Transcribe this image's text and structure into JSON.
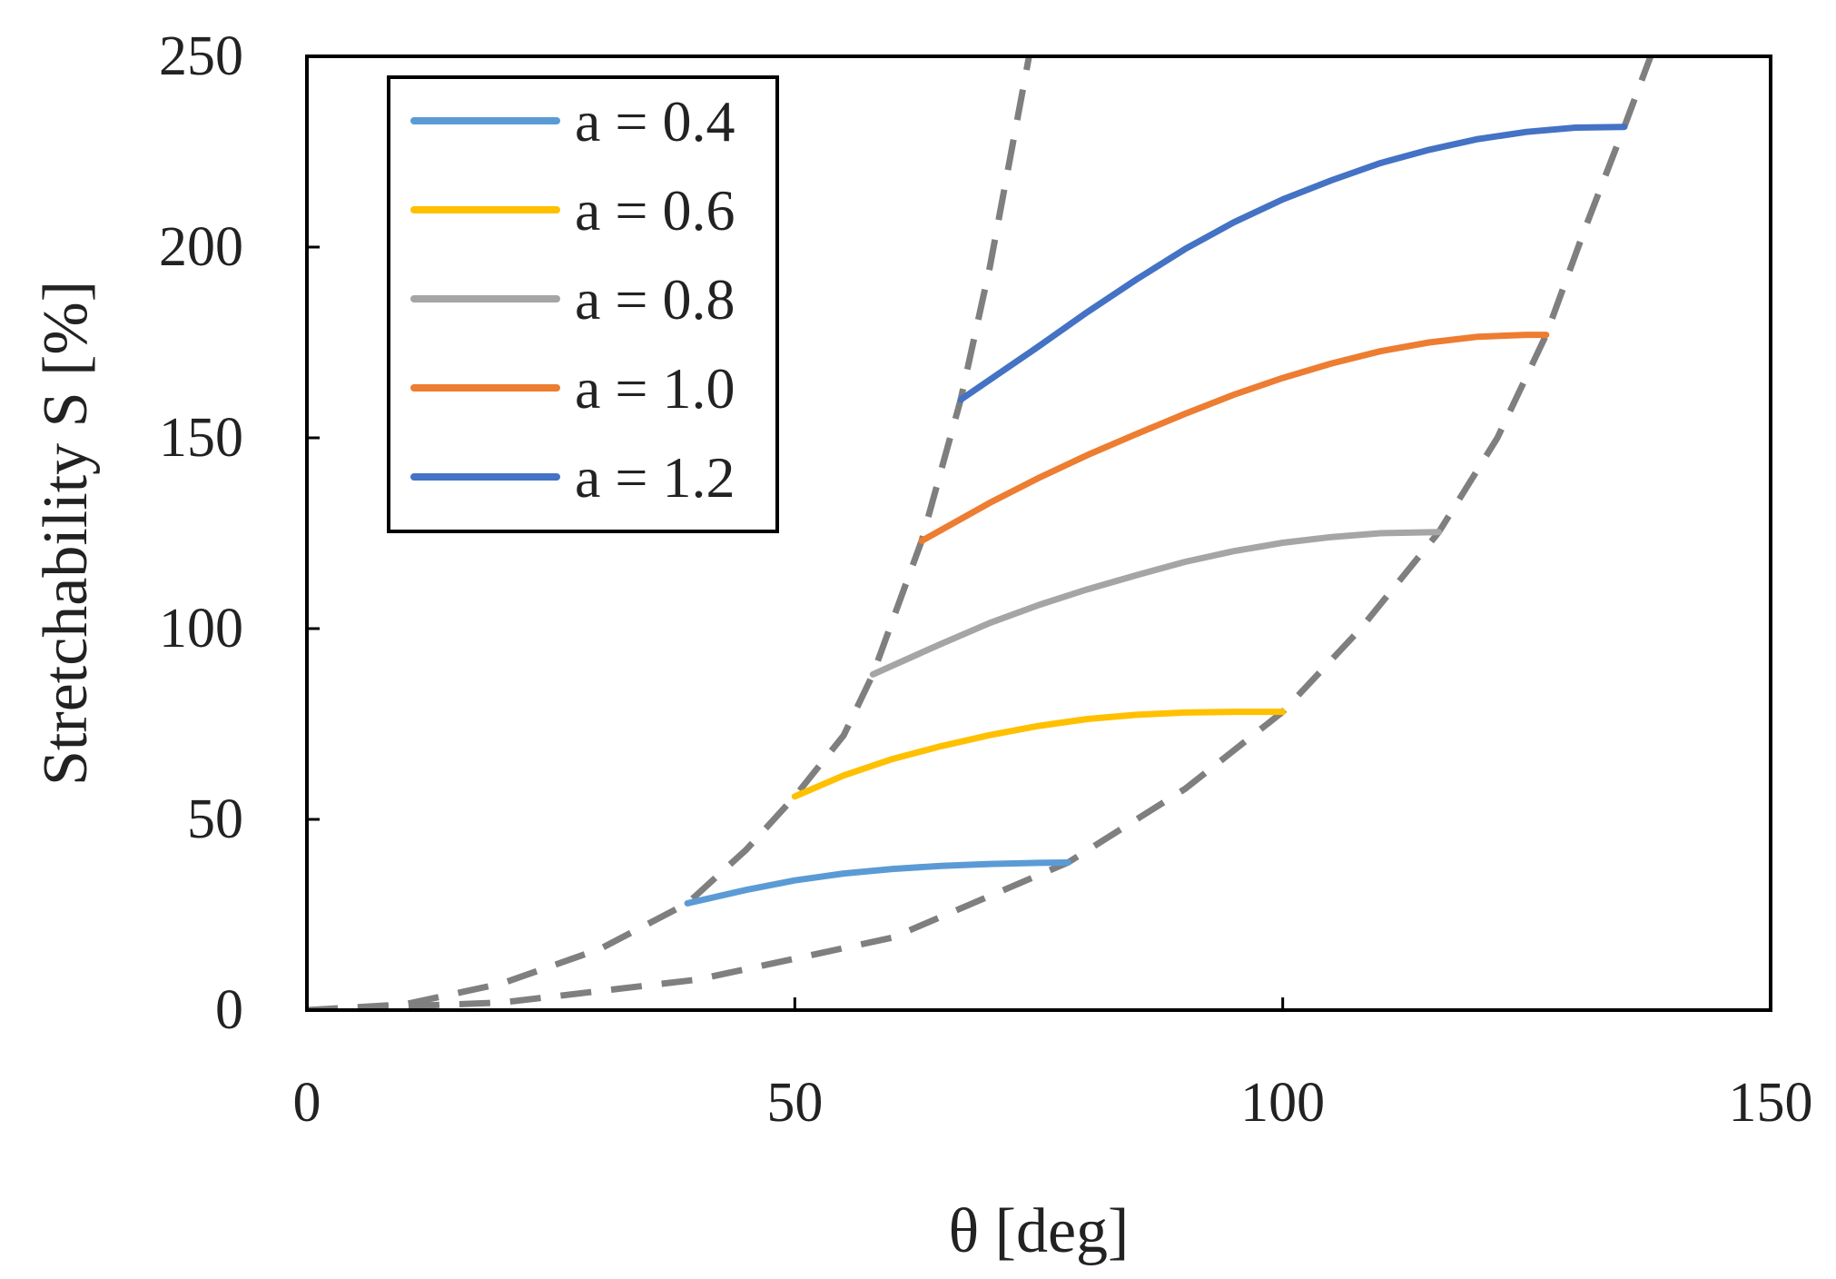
{
  "chart_data": {
    "type": "line",
    "title": "",
    "xlabel": "θ [deg]",
    "ylabel": "Stretchability S [%]",
    "xlim": [
      0,
      150
    ],
    "ylim": [
      0,
      250
    ],
    "xticks": [
      0,
      50,
      100,
      150
    ],
    "yticks": [
      0,
      50,
      100,
      150,
      200,
      250
    ],
    "grid": false,
    "legend_position": "top-left",
    "series": [
      {
        "name": "a = 0.4",
        "color": "#5B9BD5",
        "style": "solid",
        "x": [
          39,
          45,
          50,
          55,
          60,
          65,
          70,
          75,
          78
        ],
        "y": [
          28,
          31.5,
          34,
          35.8,
          37,
          37.8,
          38.3,
          38.6,
          38.7
        ]
      },
      {
        "name": "a = 0.6",
        "color": "#FFC000",
        "style": "solid",
        "x": [
          50,
          55,
          60,
          65,
          70,
          75,
          80,
          85,
          90,
          95,
          100
        ],
        "y": [
          56,
          61.5,
          65.8,
          69.2,
          72.1,
          74.5,
          76.3,
          77.4,
          78,
          78.2,
          78.2
        ]
      },
      {
        "name": "a = 0.8",
        "color": "#A5A5A5",
        "style": "solid",
        "x": [
          58,
          65,
          70,
          75,
          80,
          85,
          90,
          95,
          100,
          105,
          110,
          116
        ],
        "y": [
          88,
          96,
          101.5,
          106.2,
          110.3,
          114,
          117.5,
          120.3,
          122.5,
          124,
          125,
          125.3
        ]
      },
      {
        "name": "a = 1.0",
        "color": "#ED7D31",
        "style": "solid",
        "x": [
          63,
          70,
          75,
          80,
          85,
          90,
          95,
          100,
          105,
          110,
          115,
          120,
          125,
          127
        ],
        "y": [
          123,
          133,
          139.5,
          145.5,
          151,
          156.3,
          161.3,
          165.7,
          169.5,
          172.7,
          175,
          176.5,
          177,
          177
        ]
      },
      {
        "name": "a = 1.2",
        "color": "#4472C4",
        "style": "solid",
        "x": [
          67,
          75,
          80,
          85,
          90,
          95,
          100,
          105,
          110,
          115,
          120,
          125,
          130,
          135
        ],
        "y": [
          160,
          174,
          183,
          191.5,
          199.5,
          206.5,
          212.5,
          217.5,
          222,
          225.5,
          228.3,
          230.2,
          231.3,
          231.5
        ]
      }
    ],
    "boundaries": [
      {
        "name": "lower-angle-boundary",
        "color": "#7F7F7F",
        "style": "dashed",
        "x": [
          0,
          10,
          20,
          30,
          39,
          45,
          50,
          55,
          58,
          63,
          67,
          70,
          74
        ],
        "y": [
          0,
          1.5,
          7,
          16,
          28,
          42,
          56,
          72,
          88,
          123,
          160,
          195,
          250
        ]
      },
      {
        "name": "upper-angle-boundary",
        "color": "#7F7F7F",
        "style": "dashed",
        "x": [
          0,
          20,
          40,
          60,
          78,
          90,
          100,
          108,
          116,
          122,
          127,
          131,
          135,
          138
        ],
        "y": [
          0,
          2,
          8,
          19,
          38.7,
          58,
          78.2,
          100,
          125.3,
          150,
          177,
          205,
          231.5,
          252
        ]
      }
    ]
  }
}
